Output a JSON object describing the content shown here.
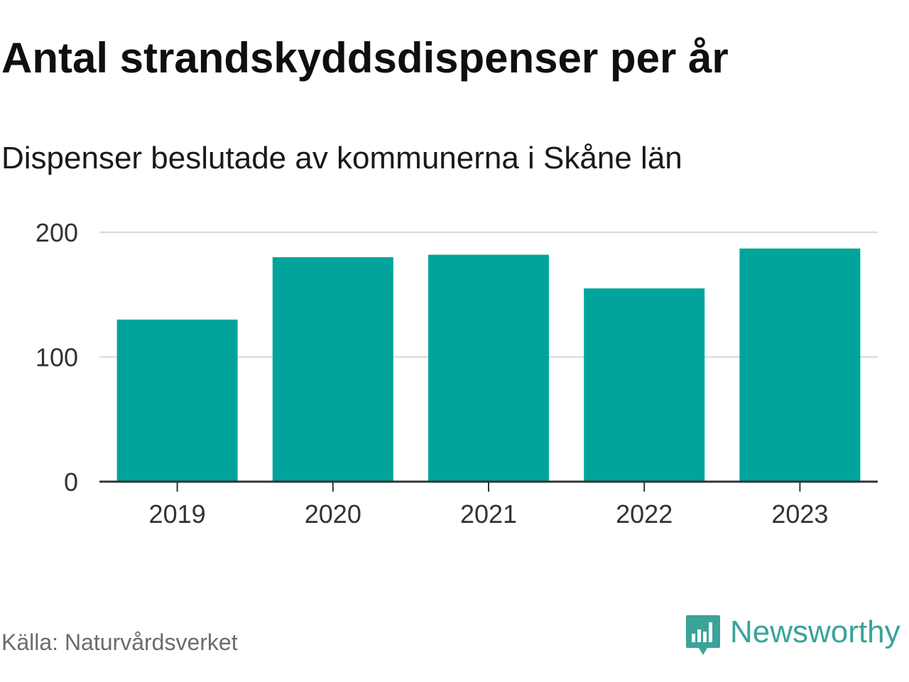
{
  "chart_data": {
    "type": "bar",
    "title": "Antal strandskyddsdispenser per år",
    "subtitle": "Dispenser beslutade av kommunerna i Skåne län",
    "categories": [
      "2019",
      "2020",
      "2021",
      "2022",
      "2023"
    ],
    "values": [
      130,
      180,
      182,
      155,
      187
    ],
    "ylim": [
      0,
      200
    ],
    "yticks": [
      0,
      100,
      200
    ],
    "grid": true,
    "xlabel": "",
    "ylabel": "",
    "bar_color": "#00a49a",
    "grid_color": "#dddddd",
    "axis_color": "#333333"
  },
  "footer": {
    "source": "Källa: Naturvårdsverket",
    "brand": "Newsworthy",
    "brand_color": "#3aa39a"
  }
}
